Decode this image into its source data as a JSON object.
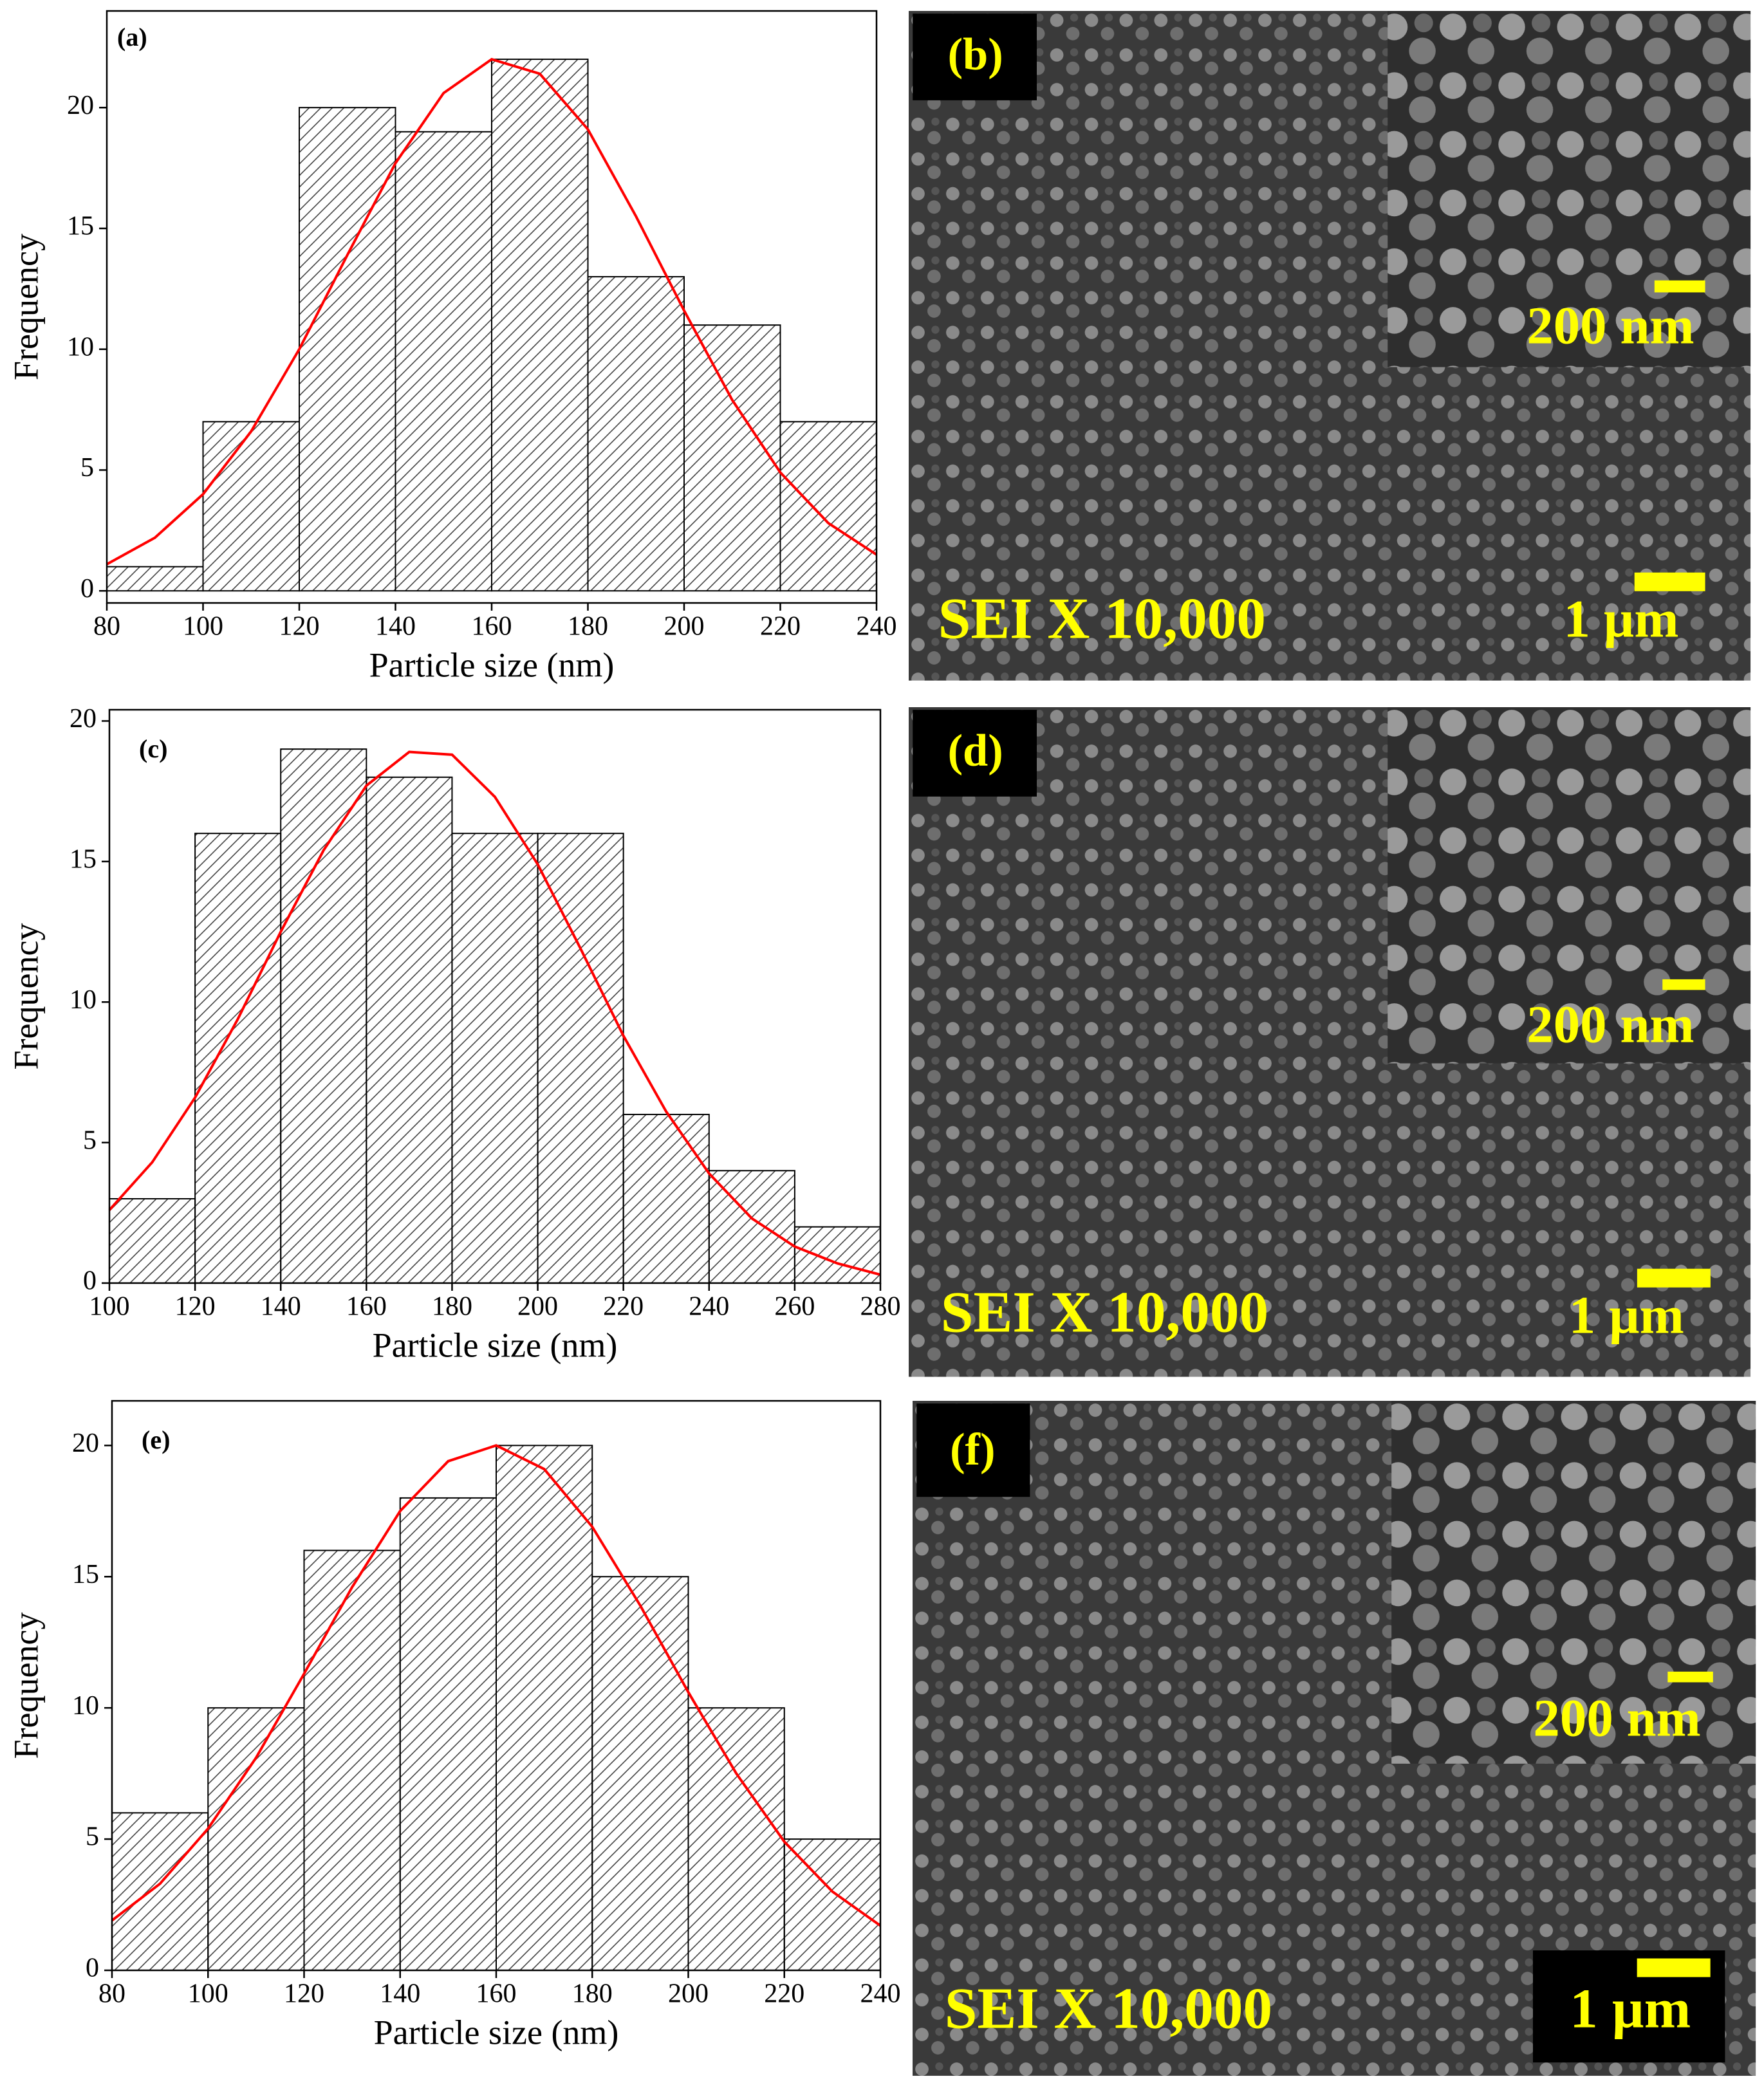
{
  "chart_data": [
    {
      "type": "histogram",
      "panel_label": "(a)",
      "x_label": "Particle size (nm)",
      "y_label": "Frequency",
      "color": "#000000",
      "bins": [
        80,
        100,
        120,
        140,
        160,
        180,
        200,
        220,
        240
      ],
      "values": [
        1,
        7,
        20,
        19,
        22,
        13,
        11,
        7
      ],
      "fit": {
        "color": "#ff0000",
        "x": [
          80,
          90,
          100,
          110,
          120,
          130,
          140,
          150,
          160,
          170,
          180,
          190,
          200,
          210,
          220,
          230,
          240
        ],
        "values": [
          1.1,
          2.2,
          4.0,
          6.6,
          10.0,
          13.9,
          17.7,
          20.6,
          22.0,
          21.4,
          19.1,
          15.5,
          11.6,
          7.9,
          4.9,
          2.8,
          1.5
        ]
      },
      "xlim": [
        80,
        240
      ],
      "ylim": [
        -0.5,
        24
      ],
      "xticks": [
        80,
        100,
        120,
        140,
        160,
        180,
        200,
        220,
        240
      ],
      "yticks": [
        0,
        5,
        10,
        15,
        20
      ]
    },
    {
      "type": "histogram",
      "panel_label": "(c)",
      "x_label": "Particle size (nm)",
      "y_label": "Frequency",
      "color": "#000000",
      "bins": [
        100,
        120,
        140,
        160,
        180,
        200,
        220,
        240,
        260,
        280
      ],
      "values": [
        3,
        16,
        19,
        18,
        16,
        16,
        6,
        4,
        2
      ],
      "fit": {
        "color": "#ff0000",
        "x": [
          100,
          110,
          120,
          130,
          140,
          150,
          160,
          170,
          180,
          190,
          200,
          210,
          220,
          230,
          240,
          250,
          260,
          270,
          280
        ],
        "values": [
          2.6,
          4.3,
          6.6,
          9.4,
          12.5,
          15.4,
          17.7,
          18.9,
          18.8,
          17.3,
          14.9,
          11.9,
          8.8,
          6.1,
          3.9,
          2.3,
          1.3,
          0.7,
          0.3
        ]
      },
      "xlim": [
        100,
        280
      ],
      "ylim": [
        0,
        20.4
      ],
      "xticks": [
        100,
        120,
        140,
        160,
        180,
        200,
        220,
        240,
        260,
        280
      ],
      "yticks": [
        0,
        5,
        10,
        15,
        20
      ]
    },
    {
      "type": "histogram",
      "panel_label": "(e)",
      "x_label": "Particle size (nm)",
      "y_label": "Frequency",
      "color": "#000000",
      "bins": [
        80,
        100,
        120,
        140,
        160,
        180,
        200,
        220,
        240
      ],
      "values": [
        6,
        10,
        16,
        18,
        20,
        15,
        10,
        5
      ],
      "fit": {
        "color": "#ff0000",
        "x": [
          80,
          90,
          100,
          110,
          120,
          130,
          140,
          150,
          160,
          170,
          180,
          190,
          200,
          210,
          220,
          230,
          240
        ],
        "values": [
          1.9,
          3.3,
          5.4,
          8.1,
          11.3,
          14.6,
          17.5,
          19.4,
          20.0,
          19.1,
          16.9,
          13.9,
          10.6,
          7.5,
          4.9,
          3.0,
          1.7
        ]
      },
      "xlim": [
        80,
        240
      ],
      "ylim": [
        0,
        21.7
      ],
      "xticks": [
        80,
        100,
        120,
        140,
        160,
        180,
        200,
        220,
        240
      ],
      "yticks": [
        0,
        5,
        10,
        15,
        20
      ]
    }
  ],
  "images": [
    {
      "panel_label": "(b)",
      "caption": "SEI X 10,000",
      "inset_scale": "200 nm",
      "scale": "1 µm"
    },
    {
      "panel_label": "(d)",
      "caption": "SEI X 10,000",
      "inset_scale": "200 nm",
      "scale": "1 µm"
    },
    {
      "panel_label": "(f)",
      "caption": "SEI X 10,000",
      "inset_scale": "200 nm",
      "scale": "1 µm"
    }
  ]
}
